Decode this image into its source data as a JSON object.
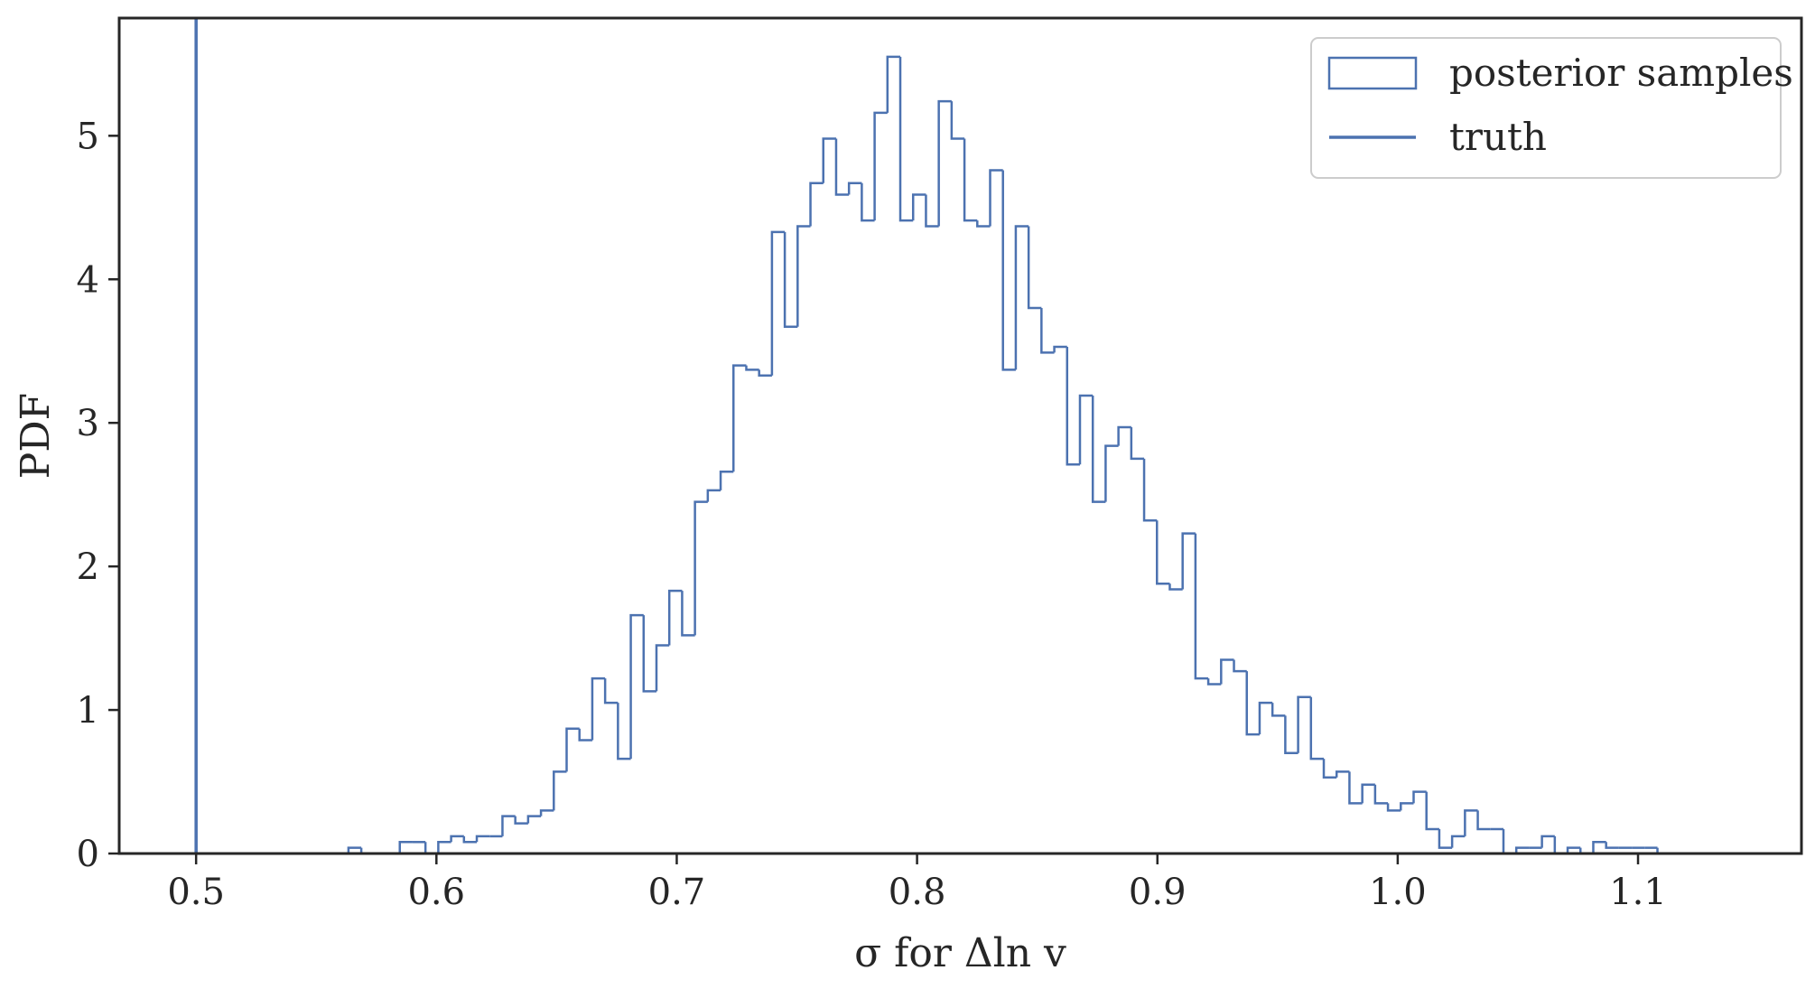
{
  "chart_data": {
    "type": "histogram",
    "xlabel": "σ for Δln v",
    "ylabel": "PDF",
    "xlim": [
      0.468,
      1.168
    ],
    "ylim": [
      0,
      5.82
    ],
    "xticks": [
      0.5,
      0.6,
      0.7,
      0.8,
      0.9,
      1.0,
      1.1
    ],
    "xtick_labels": [
      "0.5",
      "0.6",
      "0.7",
      "0.8",
      "0.9",
      "1.0",
      "1.1"
    ],
    "yticks": [
      0,
      1,
      2,
      3,
      4,
      5
    ],
    "ytick_labels": [
      "0",
      "1",
      "2",
      "3",
      "4",
      "5"
    ],
    "grid": false,
    "legend": {
      "position": "top-right",
      "entries": [
        {
          "label": "posterior samples",
          "kind": "histogram"
        },
        {
          "label": "truth",
          "kind": "line"
        }
      ]
    },
    "color": "#4c72b0",
    "series": [
      {
        "name": "posterior samples",
        "type": "step-histogram",
        "bin_start": 0.5634,
        "bin_width": 0.00534,
        "values": [
          0.04,
          0.0,
          0.0,
          0.0,
          0.08,
          0.08,
          0.0,
          0.08,
          0.12,
          0.08,
          0.12,
          0.12,
          0.26,
          0.21,
          0.26,
          0.3,
          0.57,
          0.87,
          0.79,
          1.22,
          1.05,
          0.66,
          1.66,
          1.13,
          1.45,
          1.83,
          1.52,
          2.45,
          2.53,
          2.66,
          3.4,
          3.37,
          3.33,
          4.33,
          3.67,
          4.37,
          4.67,
          4.98,
          4.59,
          4.67,
          4.41,
          5.16,
          5.55,
          4.41,
          4.59,
          4.37,
          5.24,
          4.98,
          4.41,
          4.37,
          4.76,
          3.37,
          4.37,
          3.8,
          3.49,
          3.53,
          2.71,
          3.19,
          2.45,
          2.84,
          2.97,
          2.75,
          2.32,
          1.88,
          1.84,
          2.23,
          1.22,
          1.18,
          1.35,
          1.27,
          0.83,
          1.05,
          0.96,
          0.7,
          1.09,
          0.66,
          0.53,
          0.57,
          0.35,
          0.48,
          0.35,
          0.3,
          0.35,
          0.43,
          0.17,
          0.04,
          0.12,
          0.3,
          0.17,
          0.17,
          0.0,
          0.04,
          0.04,
          0.12,
          0.0,
          0.04,
          0.0,
          0.08,
          0.04,
          0.04,
          0.04,
          0.04
        ]
      },
      {
        "name": "truth",
        "type": "vline",
        "x": 0.5
      }
    ]
  }
}
